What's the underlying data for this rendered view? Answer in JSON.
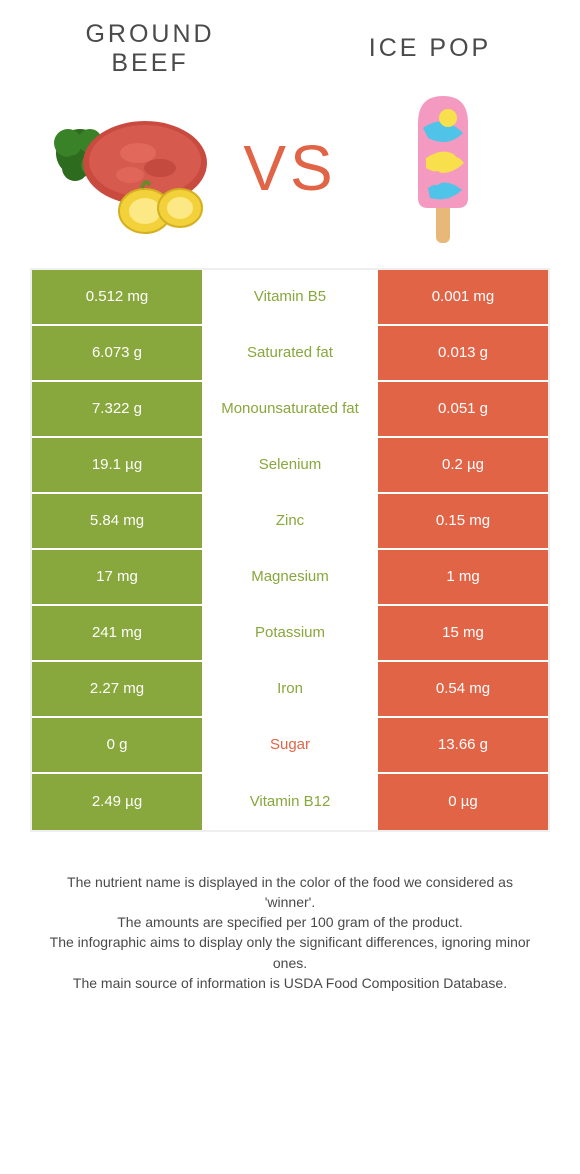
{
  "colors": {
    "green": "#88a73c",
    "orange": "#e16446",
    "mid_green": "#88a73c",
    "mid_orange": "#e16446",
    "text": "#4a4a4a",
    "white": "#ffffff",
    "border": "#efefef"
  },
  "header": {
    "left_title": "GROUND BEEF",
    "right_title": "ICE POP",
    "vs": "VS"
  },
  "rows": [
    {
      "left": "0.512 mg",
      "mid": "Vitamin B5",
      "right": "0.001 mg",
      "winner": "left"
    },
    {
      "left": "6.073 g",
      "mid": "Saturated fat",
      "right": "0.013 g",
      "winner": "left"
    },
    {
      "left": "7.322 g",
      "mid": "Monounsaturated fat",
      "right": "0.051 g",
      "winner": "left"
    },
    {
      "left": "19.1 µg",
      "mid": "Selenium",
      "right": "0.2 µg",
      "winner": "left"
    },
    {
      "left": "5.84 mg",
      "mid": "Zinc",
      "right": "0.15 mg",
      "winner": "left"
    },
    {
      "left": "17 mg",
      "mid": "Magnesium",
      "right": "1 mg",
      "winner": "left"
    },
    {
      "left": "241 mg",
      "mid": "Potassium",
      "right": "15 mg",
      "winner": "left"
    },
    {
      "left": "2.27 mg",
      "mid": "Iron",
      "right": "0.54 mg",
      "winner": "left"
    },
    {
      "left": "0 g",
      "mid": "Sugar",
      "right": "13.66 g",
      "winner": "right"
    },
    {
      "left": "2.49 µg",
      "mid": "Vitamin B12",
      "right": "0 µg",
      "winner": "left"
    }
  ],
  "footer": {
    "line1": "The nutrient name is displayed in the color of the food we considered as 'winner'.",
    "line2": "The amounts are specified per 100 gram of the product.",
    "line3": "The infographic aims to display only the significant differences, ignoring minor ones.",
    "line4": "The main source of information is USDA Food Composition Database."
  }
}
